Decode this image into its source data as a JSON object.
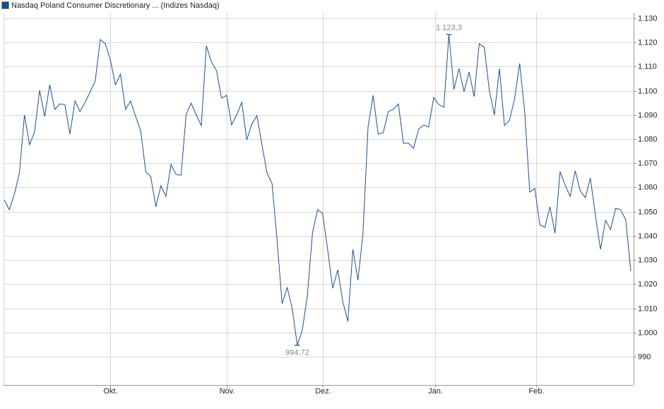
{
  "chart_data": {
    "type": "line",
    "x": [
      0,
      1,
      2,
      3,
      4,
      5,
      6,
      7,
      8,
      9,
      10,
      11,
      12,
      13,
      14,
      15,
      16,
      17,
      18,
      19,
      20,
      21,
      22,
      23,
      24,
      25,
      26,
      27,
      28,
      29,
      30,
      31,
      32,
      33,
      34,
      35,
      36,
      37,
      38,
      39,
      40,
      41,
      42,
      43,
      44,
      45,
      46,
      47,
      48,
      49,
      50,
      51,
      52,
      53,
      54,
      55,
      56,
      57,
      58,
      59,
      60,
      61,
      62,
      63,
      64,
      65,
      66,
      67,
      68,
      69,
      70,
      71,
      72,
      73,
      74,
      75,
      76,
      77,
      78,
      79,
      80,
      81,
      82,
      83,
      84,
      85,
      86,
      87,
      88,
      89,
      90,
      91,
      92,
      93,
      94,
      95,
      96,
      97,
      98,
      99,
      100,
      101,
      102,
      103,
      104,
      105,
      106,
      107,
      108,
      109,
      110,
      111,
      112,
      113,
      114,
      115,
      116,
      117,
      118,
      119,
      120,
      121,
      122,
      123,
      124
    ],
    "series": [
      {
        "name": "Nasdaq Poland Consumer Discretionary ... (Indizes Nasdaq)",
        "color": "#1c4f91",
        "values": [
          1054.9,
          1050.8,
          1057.2,
          1066,
          1090,
          1077.7,
          1082.9,
          1100.2,
          1089.4,
          1102.5,
          1092.3,
          1094.6,
          1094.3,
          1082.1,
          1095.8,
          1091.4,
          1095.2,
          1099.6,
          1104,
          1121.2,
          1119.5,
          1112.8,
          1102.5,
          1106.9,
          1092.3,
          1095.8,
          1089.4,
          1083.5,
          1066.6,
          1064.5,
          1052,
          1060.7,
          1056.3,
          1069.5,
          1065.4,
          1065.1,
          1090.2,
          1094.9,
          1090,
          1085.6,
          1118.6,
          1111.9,
          1108.4,
          1097,
          1098.1,
          1085.9,
          1090,
          1095.2,
          1079.7,
          1086.2,
          1089.7,
          1077.7,
          1066,
          1061.6,
          1038.2,
          1011.9,
          1018.6,
          1009.9,
          994.72,
          1001.1,
          1015.4,
          1041.1,
          1050.8,
          1049.3,
          1034.4,
          1018.3,
          1025.9,
          1012.8,
          1004.6,
          1034.4,
          1021.6,
          1041.1,
          1085,
          1098.1,
          1082.1,
          1082.6,
          1091.4,
          1092.3,
          1094.6,
          1078.3,
          1078.3,
          1076.2,
          1084.1,
          1085.9,
          1085,
          1097.3,
          1094.3,
          1093.2,
          1123.3,
          1100.5,
          1109.2,
          1099.6,
          1107.8,
          1097.6,
          1119.5,
          1118,
          1100.2,
          1090,
          1109.2,
          1085.6,
          1087.9,
          1096.7,
          1111.3,
          1091.4,
          1058.1,
          1059.6,
          1044.6,
          1043.5,
          1052,
          1041.1,
          1066.6,
          1061,
          1056.3,
          1066.9,
          1058.7,
          1055.8,
          1063.9,
          1048.4,
          1034.4,
          1046.4,
          1042.6,
          1051.4,
          1050.8,
          1046.6,
          1025.4
        ],
        "value_labels": [
          null,
          null,
          null,
          null,
          null,
          null,
          null,
          null,
          null,
          null,
          null,
          null,
          null,
          null,
          null,
          null,
          null,
          null,
          null,
          null,
          null,
          null,
          null,
          null,
          null,
          null,
          null,
          null,
          null,
          null,
          null,
          null,
          null,
          null,
          null,
          null,
          null,
          null,
          null,
          null,
          null,
          null,
          null,
          null,
          null,
          null,
          null,
          null,
          null,
          null,
          null,
          null,
          null,
          null,
          null,
          null,
          null,
          null,
          "994,72",
          null,
          null,
          null,
          null,
          null,
          null,
          null,
          null,
          null,
          null,
          null,
          null,
          null,
          null,
          null,
          null,
          null,
          null,
          null,
          null,
          null,
          null,
          null,
          null,
          null,
          null,
          null,
          null,
          null,
          "1.123,3",
          null,
          null,
          null,
          null,
          null,
          null,
          null,
          null,
          null,
          null,
          null,
          null,
          null,
          null,
          null,
          null,
          null,
          null,
          null,
          null,
          null,
          null,
          null,
          null,
          null,
          null,
          null,
          null,
          null,
          null,
          null,
          null,
          null,
          null,
          null,
          null
        ]
      }
    ],
    "xlim": [
      0,
      124
    ],
    "xticks": [
      {
        "value": 21,
        "label": "Okt."
      },
      {
        "value": 44,
        "label": "Nov."
      },
      {
        "value": 63,
        "label": "Dez."
      },
      {
        "value": 85.3,
        "label": "Jan."
      },
      {
        "value": 105.2,
        "label": "Feb."
      }
    ],
    "ylim": [
      978.3,
      1132.3
    ],
    "yticks": [
      990,
      {
        "value": 1000,
        "label": "1.000"
      },
      {
        "value": 1010,
        "label": "1.010"
      },
      {
        "value": 1020,
        "label": "1.020"
      },
      {
        "value": 1030,
        "label": "1.030"
      },
      {
        "value": 1040,
        "label": "1.040"
      },
      {
        "value": 1050,
        "label": "1.050"
      },
      {
        "value": 1060,
        "label": "1.060"
      },
      {
        "value": 1070,
        "label": "1.070"
      },
      {
        "value": 1080,
        "label": "1.080"
      },
      {
        "value": 1090,
        "label": "1.090"
      },
      {
        "value": 1100,
        "label": "1.100"
      },
      {
        "value": 1110,
        "label": "1.110"
      },
      {
        "value": 1120,
        "label": "1.120"
      },
      {
        "value": 1130,
        "label": "1.130"
      }
    ],
    "grid": true
  }
}
